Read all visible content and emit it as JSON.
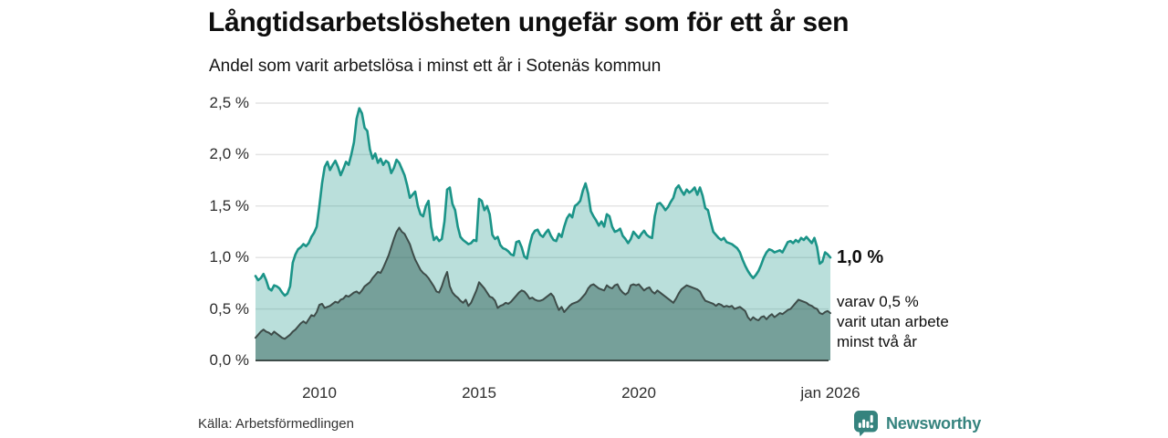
{
  "header": {
    "title": "Långtidsarbetslösheten ungefär som för ett år sen",
    "subtitle": "Andel som varit arbetslösa i minst ett år i Sotenäs kommun"
  },
  "chart_data": {
    "type": "area",
    "title": "Långtidsarbetslösheten ungefär som för ett år sen",
    "subtitle": "Andel som varit arbetslösa i minst ett år i Sotenäs kommun",
    "grid": true,
    "x_axis": {
      "labels": [
        "2010",
        "2015",
        "2020",
        "jan 2026"
      ],
      "label_years": [
        2010,
        2015,
        2020,
        2026
      ],
      "range": [
        2008,
        2026
      ]
    },
    "y_axis": {
      "ticks": [
        "2,5 %",
        "2,0 %",
        "1,5 %",
        "1,0 %",
        "0,5 %",
        "0,0 %"
      ],
      "tick_values": [
        2.5,
        2.0,
        1.5,
        1.0,
        0.5,
        0.0
      ],
      "range": [
        0,
        2.5
      ],
      "unit": "%"
    },
    "colors": {
      "grid": "#e4e4e4",
      "baseline": "#3e4c49",
      "series1_line": "#1b9488",
      "series1_fill": "rgba(27,148,136,0.30)",
      "series2_line": "#3e4c49",
      "series2_fill": "rgba(36,84,76,0.45)"
    },
    "series": [
      {
        "name": "Andel arbetslösa minst ett år",
        "start_year": 2008,
        "points_per_year": 12,
        "final_value": 1.0,
        "values": [
          0.82,
          0.78,
          0.8,
          0.84,
          0.78,
          0.7,
          0.68,
          0.73,
          0.72,
          0.7,
          0.66,
          0.63,
          0.65,
          0.72,
          0.95,
          1.03,
          1.08,
          1.1,
          1.13,
          1.11,
          1.14,
          1.2,
          1.24,
          1.3,
          1.5,
          1.72,
          1.88,
          1.93,
          1.85,
          1.9,
          1.94,
          1.88,
          1.8,
          1.86,
          1.93,
          1.9,
          2.0,
          2.12,
          2.35,
          2.45,
          2.4,
          2.26,
          2.23,
          2.05,
          1.96,
          2.01,
          1.92,
          1.96,
          1.9,
          1.94,
          1.92,
          1.82,
          1.87,
          1.95,
          1.92,
          1.86,
          1.8,
          1.7,
          1.58,
          1.61,
          1.64,
          1.5,
          1.42,
          1.4,
          1.5,
          1.55,
          1.3,
          1.17,
          1.2,
          1.16,
          1.18,
          1.35,
          1.66,
          1.68,
          1.52,
          1.46,
          1.3,
          1.2,
          1.17,
          1.15,
          1.13,
          1.14,
          1.17,
          1.16,
          1.57,
          1.55,
          1.46,
          1.5,
          1.42,
          1.22,
          1.18,
          1.2,
          1.12,
          1.09,
          1.08,
          1.06,
          1.03,
          1.02,
          1.15,
          1.16,
          1.1,
          1.01,
          0.99,
          1.12,
          1.22,
          1.26,
          1.27,
          1.22,
          1.2,
          1.24,
          1.27,
          1.21,
          1.17,
          1.16,
          1.23,
          1.2,
          1.3,
          1.38,
          1.42,
          1.39,
          1.5,
          1.52,
          1.55,
          1.65,
          1.72,
          1.62,
          1.45,
          1.4,
          1.36,
          1.31,
          1.35,
          1.3,
          1.42,
          1.4,
          1.3,
          1.25,
          1.26,
          1.28,
          1.21,
          1.18,
          1.14,
          1.18,
          1.25,
          1.22,
          1.19,
          1.23,
          1.26,
          1.22,
          1.2,
          1.19,
          1.4,
          1.52,
          1.53,
          1.5,
          1.46,
          1.49,
          1.54,
          1.58,
          1.67,
          1.7,
          1.65,
          1.61,
          1.66,
          1.63,
          1.65,
          1.68,
          1.61,
          1.68,
          1.6,
          1.48,
          1.46,
          1.35,
          1.25,
          1.22,
          1.19,
          1.17,
          1.19,
          1.15,
          1.14,
          1.13,
          1.11,
          1.09,
          1.05,
          0.98,
          0.92,
          0.87,
          0.83,
          0.8,
          0.83,
          0.87,
          0.93,
          1.0,
          1.05,
          1.08,
          1.07,
          1.05,
          1.06,
          1.07,
          1.05,
          1.1,
          1.15,
          1.16,
          1.14,
          1.17,
          1.15,
          1.19,
          1.17,
          1.2,
          1.17,
          1.14,
          1.19,
          1.1,
          0.94,
          0.96,
          1.05,
          1.03,
          1.0
        ]
      },
      {
        "name": "Andel arbetslösa minst två år",
        "start_year": 2008,
        "points_per_year": 12,
        "final_value": 0.5,
        "values": [
          0.22,
          0.25,
          0.28,
          0.3,
          0.28,
          0.27,
          0.25,
          0.28,
          0.26,
          0.24,
          0.22,
          0.21,
          0.23,
          0.25,
          0.28,
          0.3,
          0.33,
          0.36,
          0.38,
          0.36,
          0.4,
          0.44,
          0.43,
          0.47,
          0.54,
          0.55,
          0.51,
          0.52,
          0.53,
          0.55,
          0.57,
          0.56,
          0.59,
          0.6,
          0.63,
          0.62,
          0.64,
          0.66,
          0.67,
          0.65,
          0.68,
          0.72,
          0.74,
          0.76,
          0.8,
          0.83,
          0.86,
          0.85,
          0.9,
          0.96,
          1.02,
          1.1,
          1.18,
          1.25,
          1.29,
          1.25,
          1.23,
          1.18,
          1.13,
          1.05,
          0.98,
          0.93,
          0.88,
          0.85,
          0.83,
          0.8,
          0.76,
          0.72,
          0.67,
          0.66,
          0.72,
          0.8,
          0.86,
          0.72,
          0.66,
          0.63,
          0.61,
          0.58,
          0.56,
          0.59,
          0.53,
          0.56,
          0.62,
          0.68,
          0.76,
          0.73,
          0.7,
          0.66,
          0.62,
          0.61,
          0.58,
          0.51,
          0.53,
          0.54,
          0.56,
          0.55,
          0.57,
          0.6,
          0.63,
          0.66,
          0.68,
          0.67,
          0.64,
          0.6,
          0.61,
          0.59,
          0.58,
          0.58,
          0.59,
          0.61,
          0.63,
          0.65,
          0.62,
          0.55,
          0.49,
          0.52,
          0.47,
          0.5,
          0.53,
          0.55,
          0.56,
          0.57,
          0.59,
          0.62,
          0.65,
          0.7,
          0.73,
          0.74,
          0.72,
          0.7,
          0.69,
          0.68,
          0.73,
          0.71,
          0.7,
          0.73,
          0.74,
          0.69,
          0.66,
          0.64,
          0.66,
          0.73,
          0.74,
          0.73,
          0.74,
          0.71,
          0.68,
          0.7,
          0.71,
          0.67,
          0.65,
          0.68,
          0.66,
          0.64,
          0.62,
          0.6,
          0.58,
          0.56,
          0.6,
          0.65,
          0.69,
          0.71,
          0.73,
          0.72,
          0.71,
          0.7,
          0.69,
          0.67,
          0.62,
          0.58,
          0.57,
          0.56,
          0.55,
          0.53,
          0.55,
          0.54,
          0.52,
          0.53,
          0.52,
          0.53,
          0.5,
          0.51,
          0.52,
          0.5,
          0.48,
          0.42,
          0.39,
          0.42,
          0.4,
          0.39,
          0.42,
          0.43,
          0.4,
          0.43,
          0.45,
          0.42,
          0.44,
          0.46,
          0.45,
          0.47,
          0.49,
          0.5,
          0.53,
          0.56,
          0.59,
          0.58,
          0.57,
          0.56,
          0.54,
          0.53,
          0.51,
          0.5,
          0.46,
          0.45,
          0.47,
          0.48,
          0.46
        ]
      }
    ],
    "end_labels": {
      "primary": "1,0 %",
      "secondary_lines": [
        "varav 0,5 %",
        "varit utan arbete",
        "minst två år"
      ]
    }
  },
  "footer": {
    "source": "Källa: Arbetsförmedlingen",
    "brand": "Newsworthy"
  },
  "icons": {
    "brand_icon": "newsworthy-bar-chart-bubble"
  }
}
